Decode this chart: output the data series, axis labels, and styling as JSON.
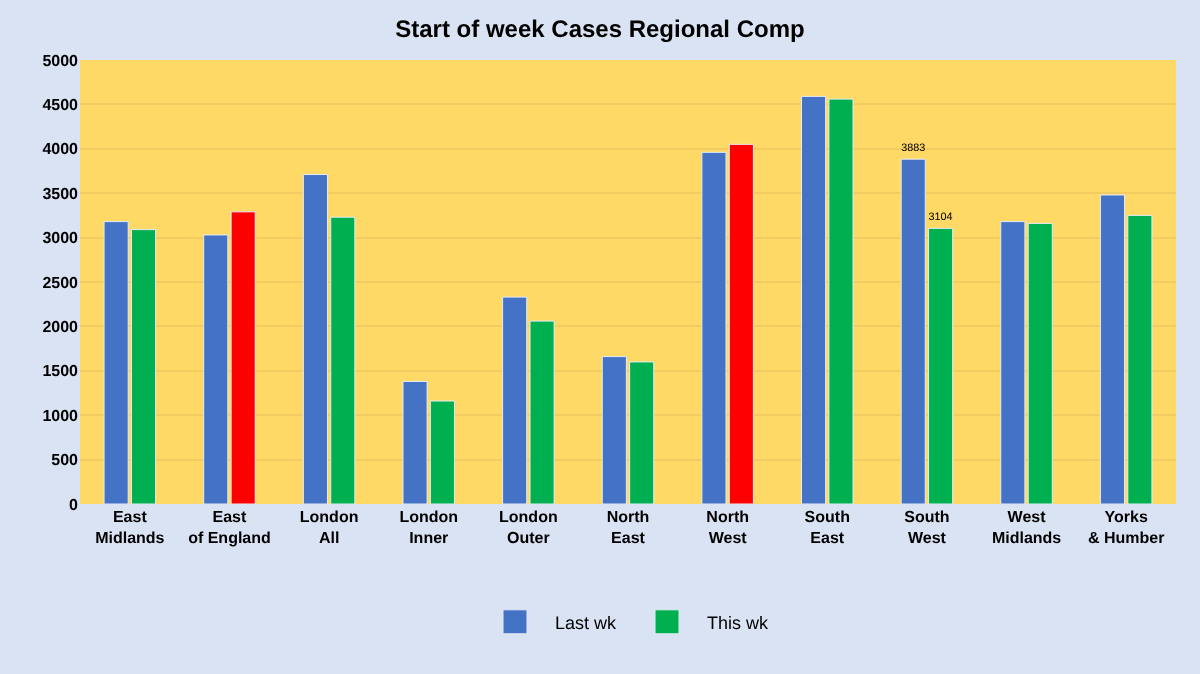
{
  "chart_data": {
    "type": "bar",
    "title": "Start of week Cases Regional Comp",
    "categories": [
      "East Midlands",
      "East of England",
      "London All",
      "London Inner",
      "London Outer",
      "North East",
      "North West",
      "South East",
      "South West",
      "West Midlands",
      "Yorks & Humber"
    ],
    "series": [
      {
        "name": "Last wk",
        "color": "#4472c4",
        "values": [
          3180,
          3030,
          3710,
          1380,
          2330,
          1660,
          3960,
          4590,
          3883,
          3180,
          3480
        ],
        "value_labels": [
          null,
          null,
          null,
          null,
          null,
          null,
          null,
          null,
          "3883",
          null,
          null
        ]
      },
      {
        "name": "This wk",
        "color": "#00b050",
        "colors": [
          "#00b050",
          "#ff0000",
          "#00b050",
          "#00b050",
          "#00b050",
          "#00b050",
          "#ff0000",
          "#00b050",
          "#00b050",
          "#00b050",
          "#00b050"
        ],
        "values": [
          3090,
          3290,
          3230,
          1160,
          2060,
          1600,
          4050,
          4560,
          3104,
          3160,
          3250
        ],
        "value_labels": [
          null,
          null,
          null,
          null,
          null,
          null,
          null,
          null,
          "3104",
          null,
          null
        ]
      }
    ],
    "ylim": [
      0,
      5000
    ],
    "yticks": [
      0,
      500,
      1000,
      1500,
      2000,
      2500,
      3000,
      3500,
      4000,
      4500,
      5000
    ],
    "grid": "y",
    "legend": "bottom"
  }
}
